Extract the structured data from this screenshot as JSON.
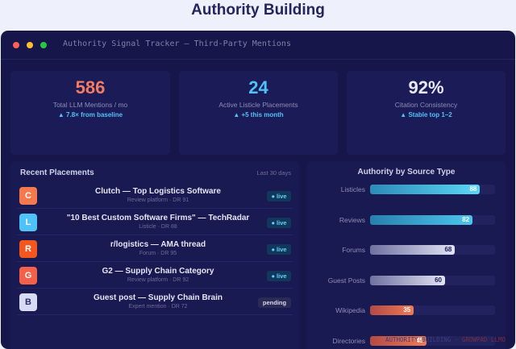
{
  "page_title": "Authority Building",
  "window": {
    "title": "Authority Signal Tracker — Third-Party Mentions"
  },
  "kpis": [
    {
      "value": "586",
      "label": "Total LLM Mentions / mo",
      "delta": "▲ 7.8× from baseline",
      "color": "#f47b5e"
    },
    {
      "value": "24",
      "label": "Active Listicle Placements",
      "delta": "▲ +5 this month",
      "color": "#4fc3f7"
    },
    {
      "value": "92%",
      "label": "Citation Consistency",
      "delta": "▲ Stable top 1–2",
      "color": "#e8e9f7"
    }
  ],
  "placements": {
    "title": "Recent Placements",
    "subtitle": "Last 30 days",
    "rows": [
      {
        "initial": "C",
        "title": "Clutch — Top Logistics Software",
        "meta": "Review platform · DR 91",
        "status": "● live",
        "status_type": "live",
        "color": "#f4794f"
      },
      {
        "initial": "L",
        "title": "\"10 Best Custom Software Firms\" — TechRadar",
        "meta": "Listicle · DR 88",
        "status": "● live",
        "status_type": "live",
        "color": "#4fc3f7"
      },
      {
        "initial": "R",
        "title": "r/logistics — AMA thread",
        "meta": "Forum · DR 95",
        "status": "● live",
        "status_type": "live",
        "color": "#f2571f"
      },
      {
        "initial": "G",
        "title": "G2 — Supply Chain Category",
        "meta": "Review platform · DR 92",
        "status": "● live",
        "status_type": "live",
        "color": "#f4604a"
      },
      {
        "initial": "B",
        "title": "Guest post — Supply Chain Brain",
        "meta": "Expert mention · DR 72",
        "status": "pending",
        "status_type": "pending",
        "color": "#d8dbf4"
      }
    ]
  },
  "source_chart": {
    "title": "Authority by Source Type",
    "max": 100,
    "bars": [
      {
        "label": "Listicles",
        "value": 88,
        "color_from": "#2d8bb8",
        "color_to": "#5ad8f5",
        "text_color": "#ffffff"
      },
      {
        "label": "Reviews",
        "value": 82,
        "color_from": "#2780ad",
        "color_to": "#4cc6ec",
        "text_color": "#ffffff"
      },
      {
        "label": "Forums",
        "value": 68,
        "color_from": "#6f71a0",
        "color_to": "#e2e3f5",
        "text_color": "#1b1b57"
      },
      {
        "label": "Guest Posts",
        "value": 60,
        "color_from": "#6f71a0",
        "color_to": "#e2e3f5",
        "text_color": "#1b1b57"
      },
      {
        "label": "Wikipedia",
        "value": 35,
        "color_from": "#b34a44",
        "color_to": "#f07a55",
        "text_color": "#ffffff"
      },
      {
        "label": "Directories",
        "value": 45,
        "color_from": "#b34a44",
        "color_to": "#f07a55",
        "text_color": "#ffffff"
      }
    ]
  },
  "footer": {
    "left": "AUTHORITY BUILDING ·",
    "brand": "GROWPAD LLMO"
  }
}
